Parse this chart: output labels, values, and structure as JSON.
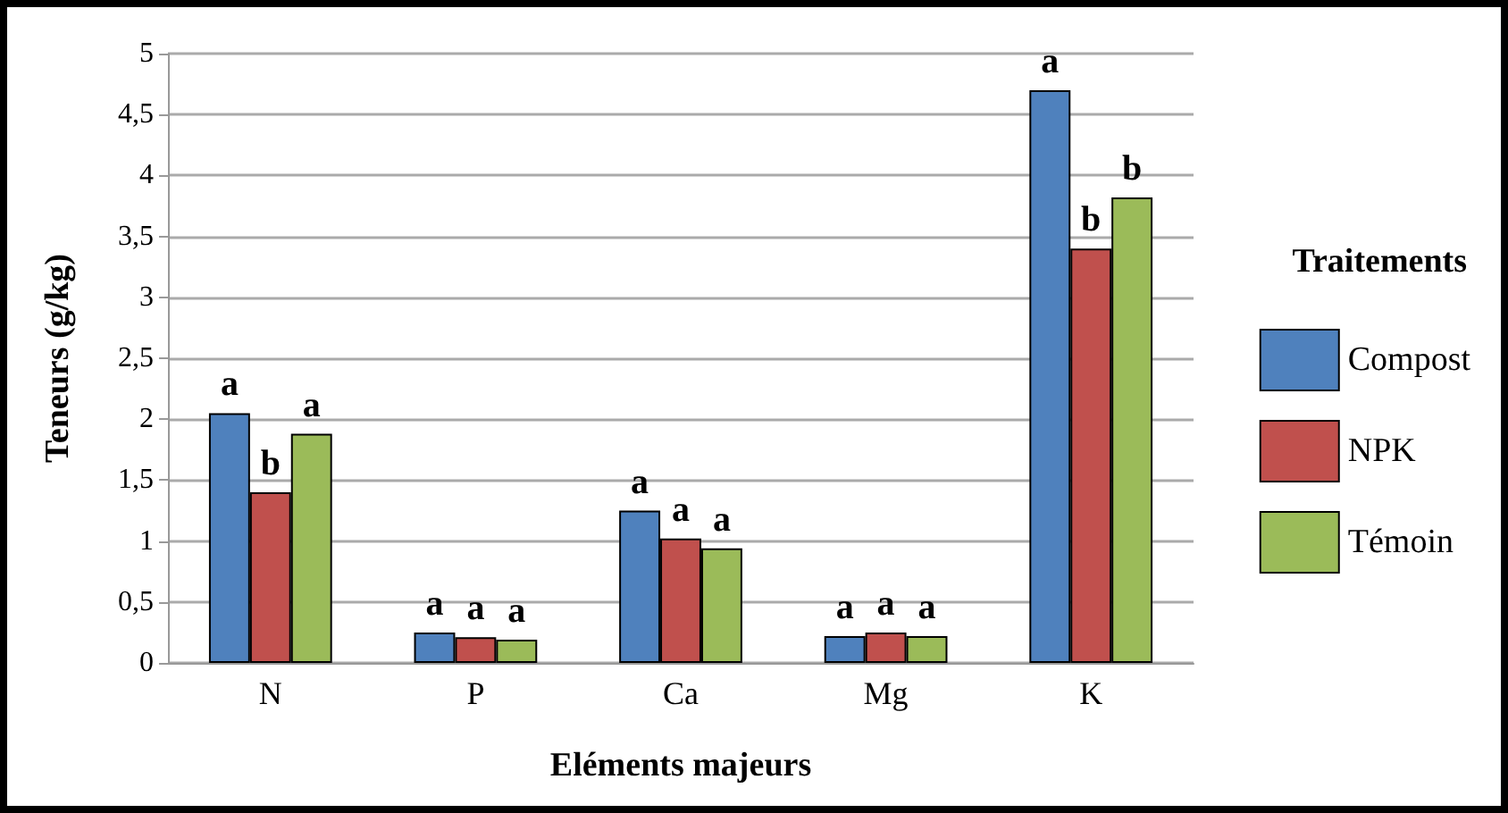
{
  "chart_data": {
    "type": "bar",
    "xlabel": "Eléments majeurs",
    "ylabel": "Teneurs (g/kg)",
    "legend_title": "Traitements",
    "categories": [
      "N",
      "P",
      "Ca",
      "Mg",
      "K"
    ],
    "series": [
      {
        "name": "Compost",
        "color": "#4f81bd",
        "values": [
          2.05,
          0.25,
          1.25,
          0.22,
          4.7
        ],
        "value_labels": [
          "a",
          "a",
          "a",
          "a",
          "a"
        ]
      },
      {
        "name": "NPK",
        "color": "#c0504d",
        "values": [
          1.4,
          0.21,
          1.02,
          0.25,
          3.4
        ],
        "value_labels": [
          "b",
          "a",
          "a",
          "a",
          "b"
        ]
      },
      {
        "name": "Témoin",
        "color": "#9bbb59",
        "values": [
          1.88,
          0.19,
          0.94,
          0.22,
          3.82
        ],
        "value_labels": [
          "a",
          "a",
          "a",
          "a",
          "b"
        ]
      }
    ],
    "ylim": [
      0,
      5
    ],
    "yticks": [
      0,
      {
        "value": 0.5,
        "label": "0,5"
      },
      1,
      {
        "value": 1.5,
        "label": "1,5"
      },
      2,
      {
        "value": 2.5,
        "label": "2,5"
      },
      3,
      {
        "value": 3.5,
        "label": "3,5"
      },
      4,
      {
        "value": 4.5,
        "label": "4,5"
      },
      5
    ],
    "grid": "y",
    "legend": "right"
  }
}
